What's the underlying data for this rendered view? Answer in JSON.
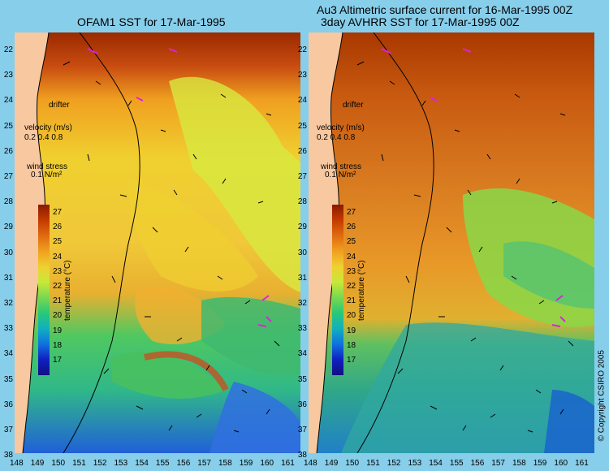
{
  "left_panel": {
    "title": "OFAM1 SST for 17-Mar-1995"
  },
  "right_panel": {
    "title_line1": "Au3 Altimetric surface current for 16-Mar-1995 00Z",
    "title_line2": "3day AVHRR SST for 17-Mar-1995 00Z"
  },
  "latitudes": [
    "22",
    "23",
    "24",
    "25",
    "26",
    "27",
    "28",
    "29",
    "30",
    "31",
    "32",
    "33",
    "34",
    "35",
    "36",
    "37",
    "38"
  ],
  "longitudes": [
    "148",
    "149",
    "150",
    "151",
    "152",
    "153",
    "154",
    "155",
    "156",
    "157",
    "158",
    "159",
    "160",
    "161"
  ],
  "legend": {
    "drifter": "drifter",
    "velocity_label": "velocity (m/s)",
    "velocity_scale": "0.2 0.4 0.8",
    "wind_label": "wind stress",
    "wind_scale": "0.1",
    "wind_units": "N/m²"
  },
  "colorbar": {
    "ticks": [
      "27",
      "26",
      "25",
      "24",
      "23",
      "22",
      "21",
      "20",
      "19",
      "18",
      "17"
    ],
    "title": "temperature (°C)",
    "colors": [
      "#8b1a00",
      "#c43a00",
      "#e06a10",
      "#f0a020",
      "#f0d030",
      "#c8e838",
      "#78d850",
      "#28c878",
      "#10b0c0",
      "#1070e0",
      "#1020c0",
      "#101080"
    ]
  },
  "copyright": "© Copyright CSIRO 2005",
  "colors": {
    "background": "#87ceeb",
    "land": "#f8c8a0",
    "drifter": "#e020e0"
  }
}
